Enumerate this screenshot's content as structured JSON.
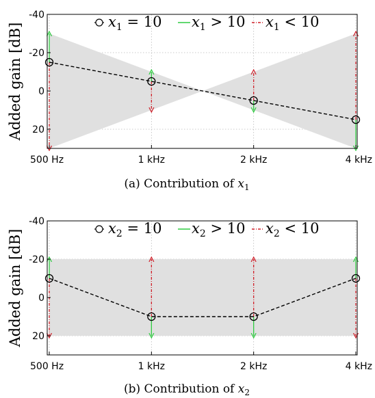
{
  "panels": [
    {
      "caption": "(a) Contribution of x",
      "caption_sub": "1",
      "chart_data": {
        "type": "line",
        "ylabel": "Added gain [dB]",
        "categories": [
          "500 Hz",
          "1 kHz",
          "2 kHz",
          "4 kHz"
        ],
        "yticks": [
          "-40",
          "-20",
          "0",
          "20"
        ],
        "ylim": [
          -40,
          30
        ],
        "y_inverted": true,
        "grid": true,
        "legend_position": "top",
        "legend": [
          {
            "var": "x",
            "sub": "1",
            "rel": "= 10",
            "style": "dashed-circle"
          },
          {
            "var": "x",
            "sub": "1",
            "rel": "> 10",
            "style": "green-solid"
          },
          {
            "var": "x",
            "sub": "1",
            "rel": "< 10",
            "style": "red-dashdot"
          }
        ],
        "series": [
          {
            "values": [
              -15,
              -5,
              5,
              15
            ]
          }
        ],
        "envelope_upper": [
          -30,
          -10,
          10,
          30
        ],
        "envelope_lower": [
          30,
          10,
          -10,
          -30
        ],
        "arrows": [
          {
            "from": -15,
            "to": -30,
            "color": "green"
          },
          {
            "from": -15,
            "to": 30,
            "color": "red"
          },
          {
            "from": -5,
            "to": -10,
            "color": "green"
          },
          {
            "from": -5,
            "to": 10,
            "color": "red"
          },
          {
            "from": 5,
            "to": 10,
            "color": "green"
          },
          {
            "from": 5,
            "to": -10,
            "color": "red"
          },
          {
            "from": 15,
            "to": 30,
            "color": "green"
          },
          {
            "from": 15,
            "to": -30,
            "color": "red"
          }
        ]
      }
    },
    {
      "caption": "(b) Contribution of x",
      "caption_sub": "2",
      "chart_data": {
        "type": "line",
        "ylabel": "Added gain [dB]",
        "categories": [
          "500 Hz",
          "1 kHz",
          "2 kHz",
          "4 kHz"
        ],
        "yticks": [
          "-40",
          "-20",
          "0",
          "20"
        ],
        "ylim": [
          -40,
          30
        ],
        "y_inverted": true,
        "grid": true,
        "legend_position": "top",
        "legend": [
          {
            "var": "x",
            "sub": "2",
            "rel": "= 10",
            "style": "dashed-circle"
          },
          {
            "var": "x",
            "sub": "2",
            "rel": "> 10",
            "style": "green-solid"
          },
          {
            "var": "x",
            "sub": "2",
            "rel": "< 10",
            "style": "red-dashdot"
          }
        ],
        "series": [
          {
            "values": [
              -10,
              10,
              10,
              -10
            ]
          }
        ],
        "envelope_upper": [
          -20,
          -20,
          -20,
          -20
        ],
        "envelope_lower": [
          20,
          20,
          20,
          20
        ],
        "arrows": [
          {
            "from": -10,
            "to": -20,
            "color": "green"
          },
          {
            "from": -10,
            "to": 20,
            "color": "red"
          },
          {
            "from": 10,
            "to": 20,
            "color": "green"
          },
          {
            "from": 10,
            "to": -20,
            "color": "red"
          },
          {
            "from": 10,
            "to": 20,
            "color": "green"
          },
          {
            "from": 10,
            "to": -20,
            "color": "red"
          },
          {
            "from": -10,
            "to": -20,
            "color": "green"
          },
          {
            "from": -10,
            "to": 20,
            "color": "red"
          }
        ]
      }
    }
  ],
  "colors": {
    "envelope": "#e0e0e0",
    "grid": "#b8b8b8",
    "green": "#2ecc40",
    "red": "#d0202a",
    "line": "#000000"
  }
}
